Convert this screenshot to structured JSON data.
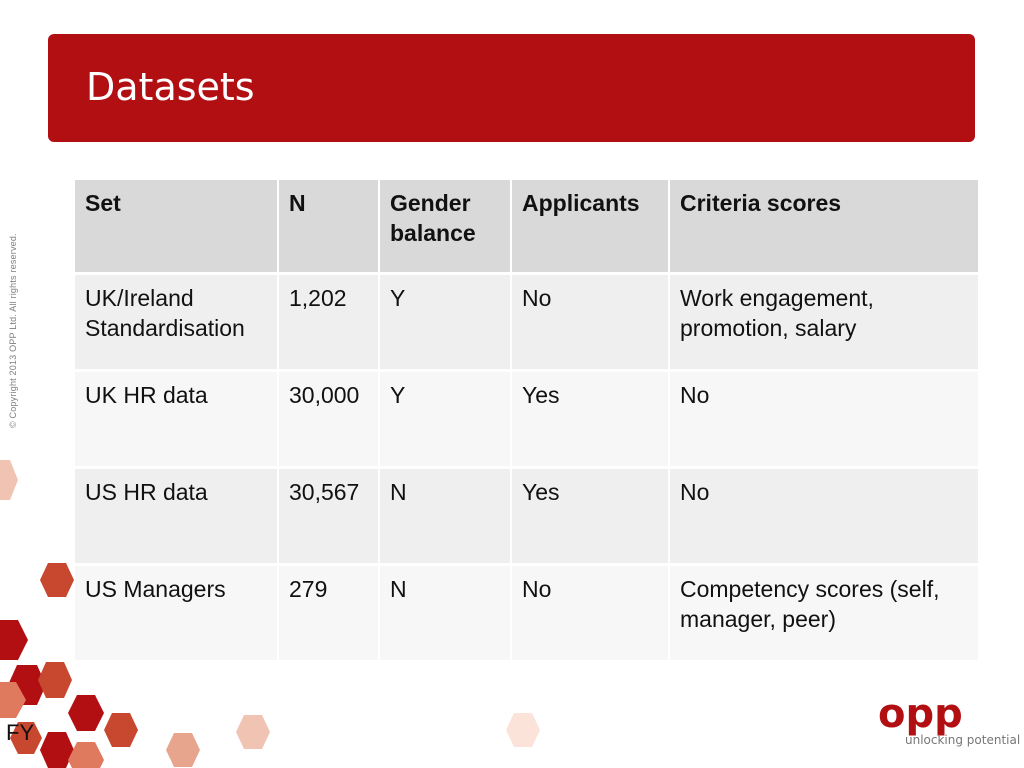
{
  "slide": {
    "title": "Datasets",
    "copyright": "© Copyright 2013 OPP Ltd. All rights reserved.",
    "footer_label": "FY",
    "brand_name": "opp",
    "tagline": "unlocking potential",
    "colors": {
      "brand_red": "#b20f13",
      "accent_red": "#c8472f",
      "light_peach": "#f0c3b3"
    }
  },
  "table": {
    "headers": [
      "Set",
      "N",
      "Gender balance",
      "Applicants",
      "Criteria scores"
    ],
    "rows": [
      {
        "set": "UK/Ireland Standardisation",
        "n": "1,202",
        "gender": "Y",
        "applicants": "No",
        "criteria": "Work engagement, promotion, salary"
      },
      {
        "set": "UK HR data",
        "n": "30,000",
        "gender": "Y",
        "applicants": "Yes",
        "criteria": "No"
      },
      {
        "set": "US HR data",
        "n": "30,567",
        "gender": "N",
        "applicants": "Yes",
        "criteria": "No"
      },
      {
        "set": "US Managers",
        "n": "279",
        "gender": "N",
        "applicants": "No",
        "criteria": "Competency scores (self, manager, peer)"
      }
    ]
  }
}
